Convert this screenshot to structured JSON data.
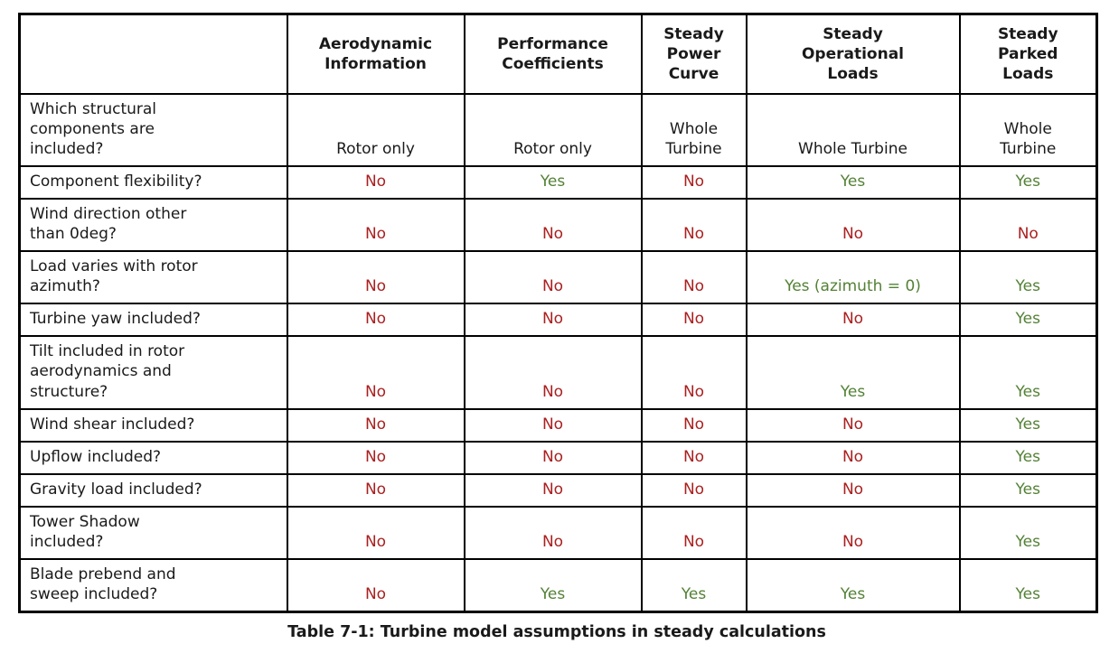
{
  "caption": "Table 7-1: Turbine model assumptions in steady calculations",
  "colors": {
    "yes": "#538135",
    "no": "#aa1f1f",
    "text": "#1a1a1a",
    "border": "#000000",
    "page_background": "#ffffff"
  },
  "table": {
    "column_headers": [
      "",
      "Aerodynamic\nInformation",
      "Performance\nCoefficients",
      "Steady\nPower\nCurve",
      "Steady\nOperational\nLoads",
      "Steady\nParked\nLoads"
    ],
    "rows": [
      {
        "label": "Which structural\ncomponents are\nincluded?",
        "values": [
          "Rotor only",
          "Rotor only",
          "Whole\nTurbine",
          "Whole Turbine",
          "Whole\nTurbine"
        ]
      },
      {
        "label": "Component flexibility?",
        "values": [
          "No",
          "Yes",
          "No",
          "Yes",
          "Yes"
        ]
      },
      {
        "label": "Wind direction other\nthan 0deg?",
        "values": [
          "No",
          "No",
          "No",
          "No",
          "No"
        ]
      },
      {
        "label": "Load varies with rotor\nazimuth?",
        "values": [
          "No",
          "No",
          "No",
          "Yes (azimuth = 0)",
          "Yes"
        ]
      },
      {
        "label": "Turbine yaw included?",
        "values": [
          "No",
          "No",
          "No",
          "No",
          "Yes"
        ]
      },
      {
        "label": "Tilt included in rotor\naerodynamics and\nstructure?",
        "values": [
          "No",
          "No",
          "No",
          "Yes",
          "Yes"
        ]
      },
      {
        "label": "Wind shear included?",
        "values": [
          "No",
          "No",
          "No",
          "No",
          "Yes"
        ]
      },
      {
        "label": "Upflow included?",
        "values": [
          "No",
          "No",
          "No",
          "No",
          "Yes"
        ]
      },
      {
        "label": "Gravity load included?",
        "values": [
          "No",
          "No",
          "No",
          "No",
          "Yes"
        ]
      },
      {
        "label": "Tower Shadow\nincluded?",
        "values": [
          "No",
          "No",
          "No",
          "No",
          "Yes"
        ]
      },
      {
        "label": "Blade prebend and\nsweep included?",
        "values": [
          "No",
          "Yes",
          "Yes",
          "Yes",
          "Yes"
        ]
      }
    ]
  }
}
